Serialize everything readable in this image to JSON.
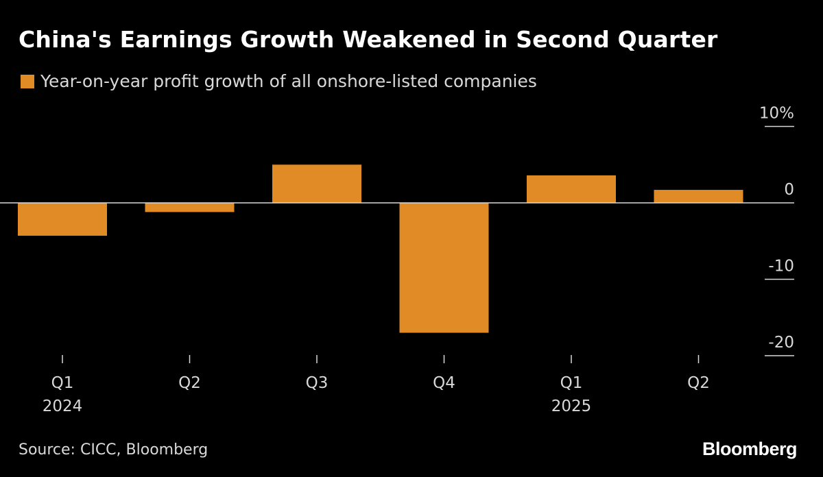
{
  "colors": {
    "background": "#000000",
    "bar": "#e08b26",
    "axis": "#d9d9d9",
    "text": "#d9d9d9"
  },
  "chart_data": {
    "type": "bar",
    "title": "China's Earnings Growth Weakened in Second Quarter",
    "legend": [
      "Year-on-year profit growth of all onshore-listed companies"
    ],
    "categories": [
      "Q1",
      "Q2",
      "Q3",
      "Q4",
      "Q1",
      "Q2"
    ],
    "year_labels": [
      "2024",
      "",
      "",
      "",
      "2025",
      ""
    ],
    "series": [
      {
        "name": "Year-on-year profit growth of all onshore-listed companies",
        "values": [
          -4.3,
          -1.2,
          5.0,
          -17.0,
          3.6,
          1.7
        ]
      }
    ],
    "y_ticks": [
      10,
      0,
      -10,
      -20
    ],
    "y_tick_labels": [
      "10%",
      "0",
      "-10",
      "-20"
    ],
    "ylim": [
      -20,
      10
    ],
    "xlabel": "",
    "ylabel": "",
    "axis_side": "right",
    "grid": false
  },
  "footer": {
    "source": "Source: CICC, Bloomberg",
    "brand": "Bloomberg"
  }
}
